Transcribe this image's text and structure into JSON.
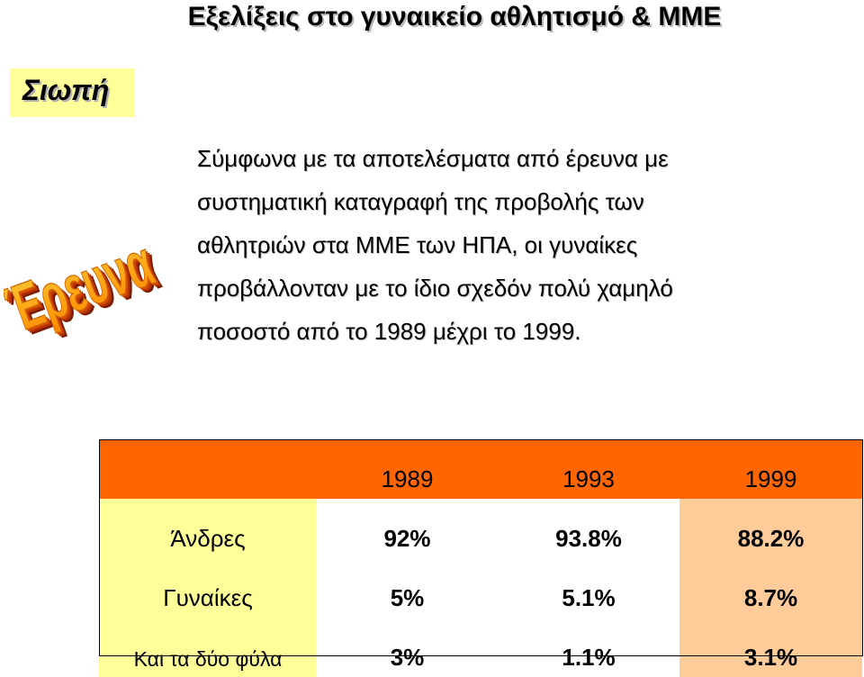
{
  "title": "Εξελίξεις στο γυναικείο αθλητισμό & ΜΜΕ",
  "badge": "Σιωπή",
  "wordart": "Έρευνα",
  "paragraph": [
    "Σύμφωνα με τα αποτελέσματα από έρευνα με",
    "συστηματική καταγραφή της προβολής των",
    "αθλητριών στα ΜΜΕ των ΗΠΑ, οι γυναίκες",
    "προβάλλονταν με το ίδιο σχεδόν πολύ χαμηλό",
    "ποσοστό από το 1989 μέχρι το 1999."
  ],
  "table": {
    "header": [
      "",
      "1989",
      "1993",
      "1999"
    ],
    "rows": [
      {
        "label": "Άνδρες",
        "values": [
          "92%",
          "93.8%",
          "88.2%"
        ]
      },
      {
        "label": "Γυναίκες",
        "values": [
          "5%",
          "5.1%",
          "8.7%"
        ]
      },
      {
        "label": "Και τα δύο φύλα",
        "values": [
          "3%",
          "1.1%",
          "3.1%"
        ]
      }
    ]
  },
  "colors": {
    "header_bg": "#ff6600",
    "label_bg": "#ffff99",
    "highlight_col_bg": "#ffcc99",
    "wordart_fill": "#ff9900",
    "wordart_shadow": "#cc3300"
  }
}
